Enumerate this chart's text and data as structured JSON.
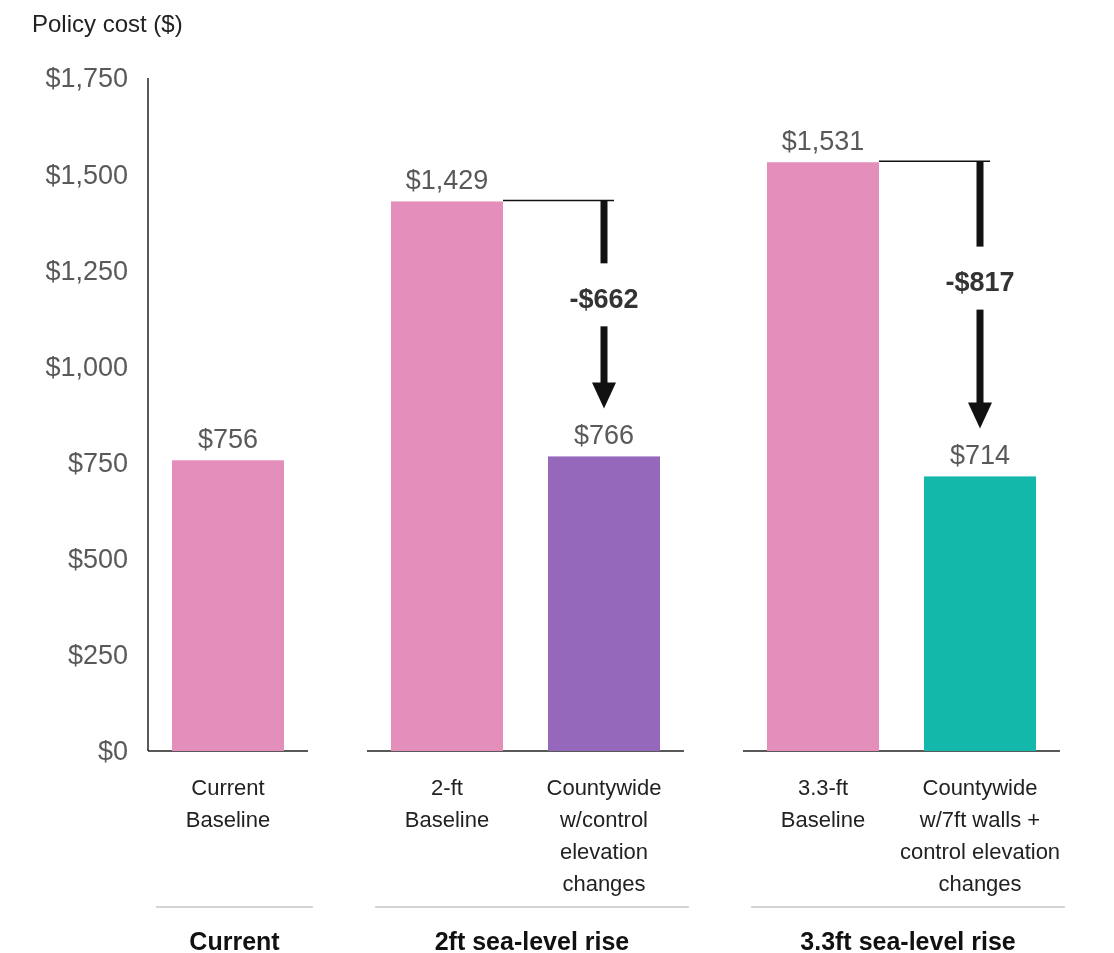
{
  "chart_data": {
    "type": "bar",
    "ylabel": "Policy cost ($)",
    "categories": [
      "Current\nBaseline",
      null,
      "2-ft\nBaseline",
      "Countywide\nw/control\nelevation\nchanges",
      null,
      "3.3-ft\nBaseline",
      "Countywide\nw/7ft walls +\ncontrol elevation\nchanges"
    ],
    "values": [
      756,
      null,
      1429,
      766,
      null,
      1531,
      714
    ],
    "colors": [
      "#e48fbb",
      null,
      "#e48fbb",
      "#9568bb",
      null,
      "#e48fbb",
      "#14b8ab"
    ],
    "value_labels": [
      "$756",
      null,
      "$1,429",
      "$766",
      null,
      "$1,531",
      "$714"
    ],
    "ylim": [
      0,
      1750
    ],
    "yticks": [
      {
        "value": 0,
        "label": "$0"
      },
      {
        "value": 250,
        "label": "$250"
      },
      {
        "value": 500,
        "label": "$500"
      },
      {
        "value": 750,
        "label": "$750"
      },
      {
        "value": 1000,
        "label": "$1,000"
      },
      {
        "value": 1250,
        "label": "$1,250"
      },
      {
        "value": 1500,
        "label": "$1,500"
      },
      {
        "value": 1750,
        "label": "$1,750"
      }
    ],
    "annotations": [
      "Current",
      "2ft sea-level rise",
      "3.3ft sea-level rise",
      "-$662",
      "-$817"
    ]
  }
}
